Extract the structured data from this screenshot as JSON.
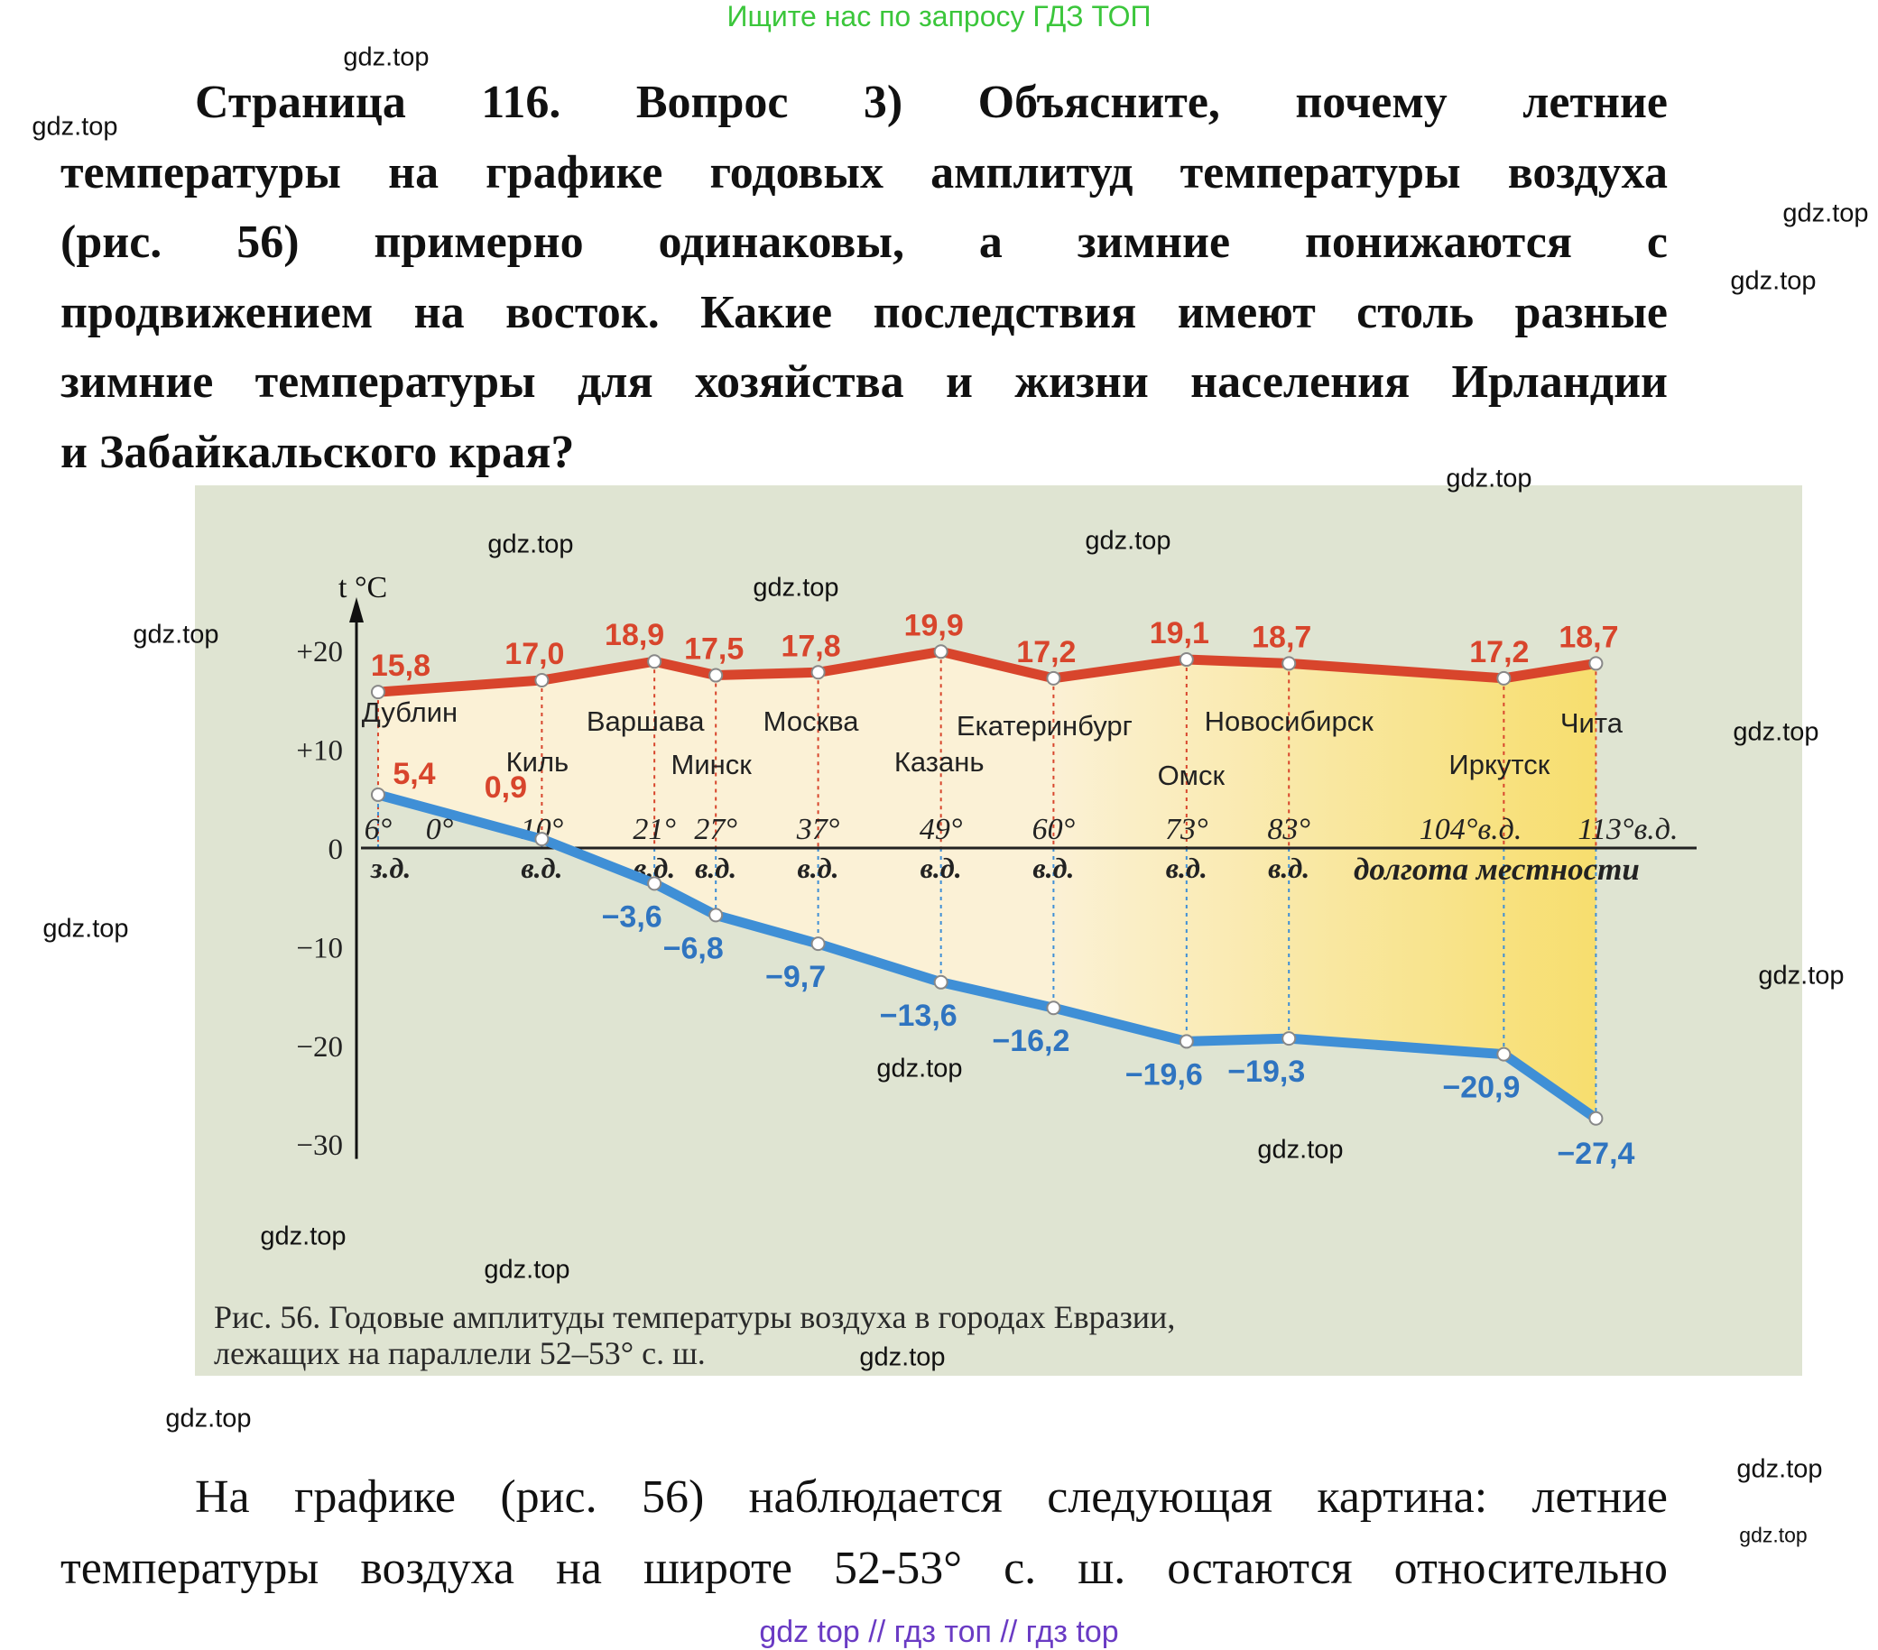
{
  "top_banner": "Ищите нас по запросу ГДЗ ТОП",
  "heading_lines": [
    "Страница 116. Вопрос 3) Объясните, почему летние",
    "температуры на графике годовых амплитуд температуры воздуха",
    "(рис. 56) примерно одинаковы, а зимние понижаются с",
    "продвижением на восток. Какие последствия имеют столь разные",
    "зимние температуры для хозяйства и жизни населения Ирландии",
    "и Забайкальского края?"
  ],
  "body_lines": [
    "На графике (рис. 56) наблюдается следующая картина: летние",
    "температуры воздуха на широте 52-53° с. ш. остаются относительно"
  ],
  "footer": "gdz top  //  гдз топ  //  гдз top",
  "watermarks": [
    "gdz.top",
    "gdz.top",
    "gdz.top",
    "gdz.top",
    "gdz.top",
    "gdz.top",
    "gdz.top",
    "gdz.top",
    "gdz.top",
    "gdz.top",
    "gdz.top",
    "gdz.top",
    "gdz.top",
    "gdz.top",
    "gdz.top",
    "gdz.top",
    "gdz.top",
    "gdz.top",
    "gdz.top",
    "gdz.top"
  ],
  "figure": {
    "caption_lines": [
      "Рис. 56. Годовые амплитуды температуры воздуха в городах Евразии,",
      "лежащих на параллели 52–53° с. ш."
    ]
  },
  "chart_data": {
    "type": "line",
    "ylabel": "t °C",
    "xlabel": "долгота местности",
    "ylim": [
      -30,
      20
    ],
    "y_ticks": [
      "+20",
      "+10",
      "0",
      "−10",
      "−20",
      "−30"
    ],
    "y_tick_values": [
      20,
      10,
      0,
      -10,
      -20,
      -30
    ],
    "x_zero_label": "0°",
    "categories": [
      "Дублин",
      "Киль",
      "Варшава",
      "Минск",
      "Москва",
      "Казань",
      "Екатеринбург",
      "Омск",
      "Новосибирск",
      "Иркутск",
      "Чита"
    ],
    "longitude": [
      -6,
      10,
      21,
      27,
      37,
      49,
      60,
      73,
      83,
      104,
      113
    ],
    "longitude_labels": [
      "6°",
      "10°",
      "21°",
      "27°",
      "37°",
      "49°",
      "60°",
      "73°",
      "83°",
      "104°в.д.",
      "113°в.д."
    ],
    "longitude_suffix": [
      "з.д.",
      "в.д.",
      "в.д.",
      "в.д.",
      "в.д.",
      "в.д.",
      "в.д.",
      "в.д.",
      "в.д.",
      "",
      ""
    ],
    "series": [
      {
        "values": [
          15.8,
          17.0,
          18.9,
          17.5,
          17.8,
          19.9,
          17.2,
          19.1,
          18.7,
          17.2,
          18.7
        ],
        "labels": [
          "15,8",
          "17,0",
          "18,9",
          "17,5",
          "17,8",
          "19,9",
          "17,2",
          "19,1",
          "18,7",
          "17,2",
          "18,7"
        ],
        "color": "#d8452c"
      },
      {
        "values": [
          5.4,
          0.9,
          -3.6,
          -6.8,
          -9.7,
          -13.6,
          -16.2,
          -19.6,
          -19.3,
          -20.9,
          -27.4
        ],
        "labels": [
          "5,4",
          "0,9",
          "−3,6",
          "−6,8",
          "−9,7",
          "−13,6",
          "−16,2",
          "−19,6",
          "−19,3",
          "−20,9",
          "−27,4"
        ],
        "color": "#3f8fd6"
      }
    ],
    "colors": {
      "background": "#dfe4d2",
      "fill": "#fbf1d6",
      "east_fill": "#f7de6e",
      "positive_label": "#d8452c",
      "negative_label": "#2f74c0"
    }
  }
}
